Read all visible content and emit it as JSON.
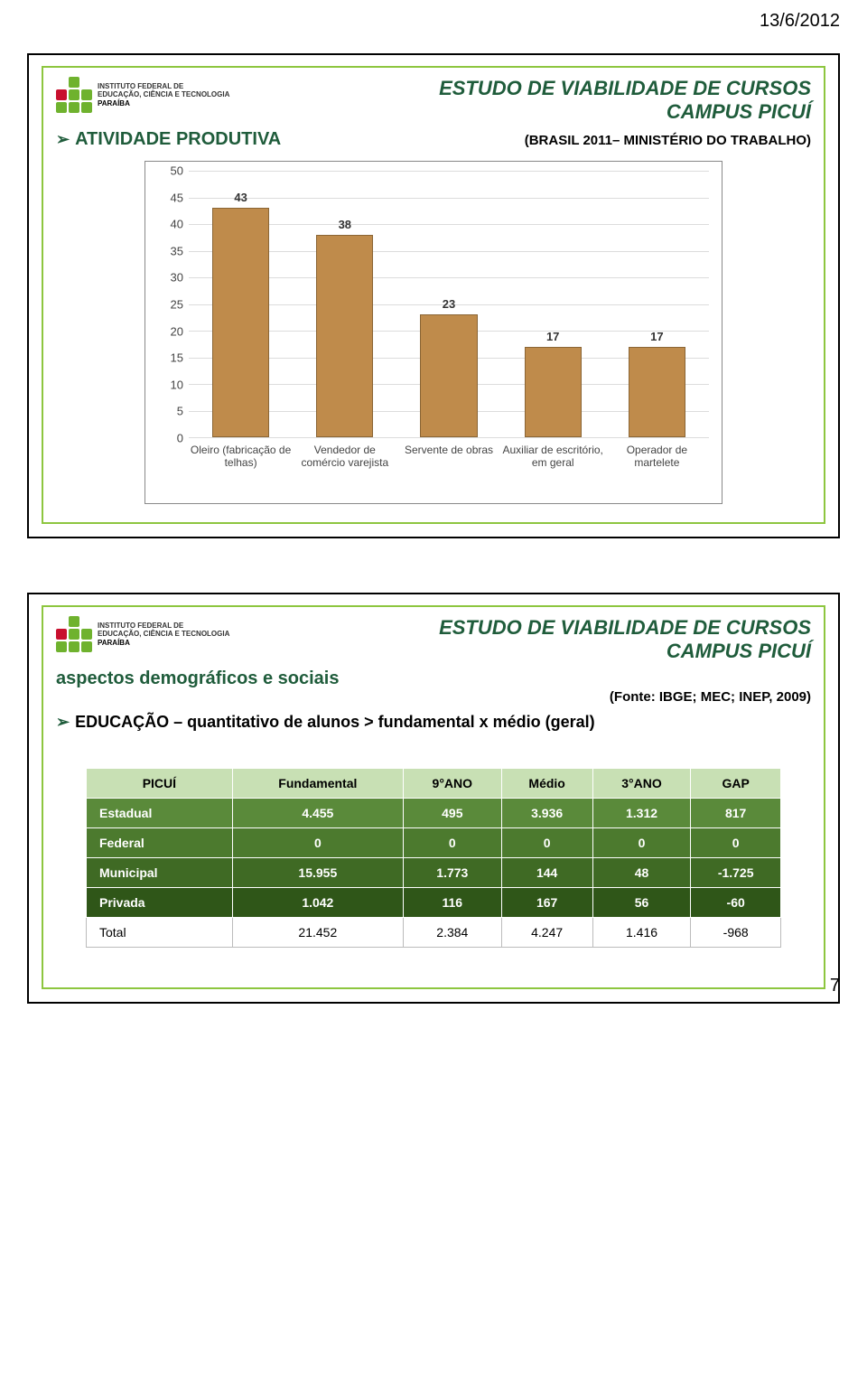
{
  "page_date": "13/6/2012",
  "page_number": "7",
  "logo_text": {
    "line1": "INSTITUTO FEDERAL DE",
    "line2": "EDUCAÇÃO, CIÊNCIA E TECNOLOGIA",
    "line3": "PARAÍBA"
  },
  "slide1": {
    "title_main": "ESTUDO DE VIABILIDADE DE CURSOS",
    "title_sub": "CAMPUS PICUÍ",
    "subhead": "ATIVIDADE PRODUTIVA",
    "source": "(BRASIL 2011– MINISTÉRIO DO TRABALHO)",
    "chart": {
      "type": "bar",
      "ylim": [
        0,
        50
      ],
      "ytick_step": 5,
      "bar_color": "#bf8b4b",
      "bar_border": "#8a6535",
      "grid_color": "#dcdcdc",
      "background_color": "#ffffff",
      "label_fontsize": 13,
      "categories": [
        "Oleiro (fabricação de telhas)",
        "Vendedor de comércio varejista",
        "Servente de obras",
        "Auxiliar de escritório, em geral",
        "Operador de martelete"
      ],
      "values": [
        43,
        38,
        23,
        17,
        17
      ]
    }
  },
  "slide2": {
    "title_main": "ESTUDO DE VIABILIDADE DE CURSOS",
    "title_sub": "CAMPUS PICUÍ",
    "subhead": "aspectos demográficos e sociais",
    "source": "(Fonte: IBGE; MEC; INEP, 2009)",
    "edu_line": "EDUCAÇÃO – quantitativo de alunos > fundamental x médio (geral)",
    "table": {
      "header_bg": "#c8e0b4",
      "columns": [
        "PICUÍ",
        "Fundamental",
        "9°ANO",
        "Médio",
        "3°ANO",
        "GAP"
      ],
      "rows": [
        {
          "label": "Estadual",
          "cells": [
            "4.455",
            "495",
            "3.936",
            "1.312",
            "817"
          ],
          "bg": "#5a8a3a"
        },
        {
          "label": "Federal",
          "cells": [
            "0",
            "0",
            "0",
            "0",
            "0"
          ],
          "bg": "#4c7a2e"
        },
        {
          "label": "Municipal",
          "cells": [
            "15.955",
            "1.773",
            "144",
            "48",
            "-1.725"
          ],
          "bg": "#3f6a24"
        },
        {
          "label": "Privada",
          "cells": [
            "1.042",
            "116",
            "167",
            "56",
            "-60"
          ],
          "bg": "#2f5618"
        }
      ],
      "total": {
        "label": "Total",
        "cells": [
          "21.452",
          "2.384",
          "4.247",
          "1.416",
          "-968"
        ]
      }
    }
  }
}
